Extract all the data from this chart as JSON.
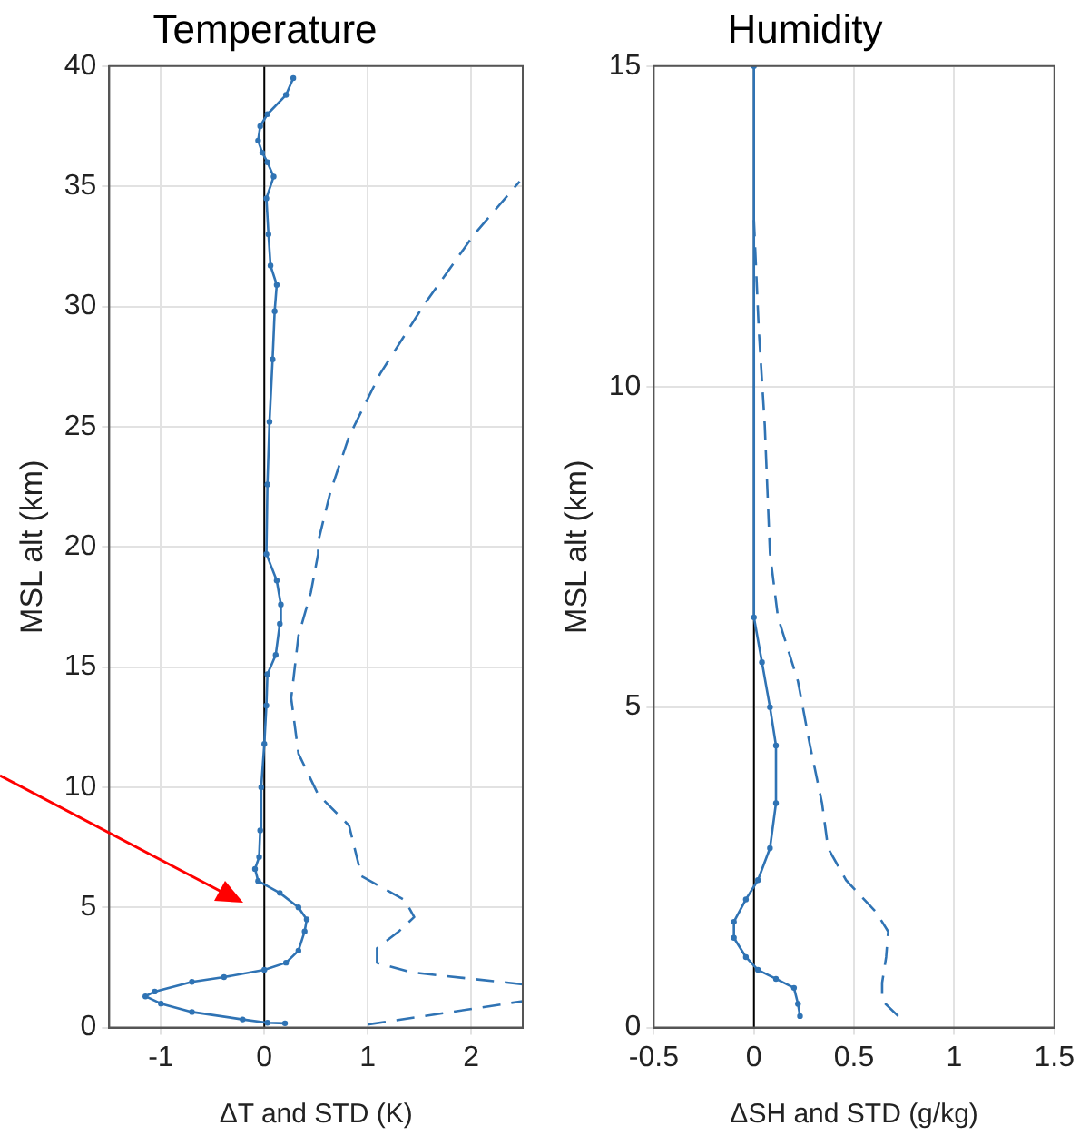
{
  "chart_data": [
    {
      "type": "line",
      "title": "Temperature",
      "xlabel": "ΔT and STD (K)",
      "ylabel": "MSL alt (km)",
      "xlim": [
        -1.5,
        2.5
      ],
      "xticks": [
        -1,
        0,
        1,
        2
      ],
      "ylim": [
        0,
        40
      ],
      "yticks": [
        0,
        5,
        10,
        15,
        20,
        25,
        30,
        35,
        40
      ],
      "grid": true,
      "legend": false,
      "ref_lines": [
        {
          "axis": "x",
          "value": 0,
          "color": "#000000"
        }
      ],
      "series": [
        {
          "color": "#2f73b4",
          "marker": "circle",
          "line_style": "solid",
          "x": [
            0.2,
            0.03,
            -0.21,
            -0.7,
            -1.0,
            -1.15,
            -1.06,
            -0.7,
            -0.39,
            0,
            0.21,
            0.33,
            0.39,
            0.41,
            0.33,
            0.15,
            -0.06,
            -0.09,
            -0.05,
            -0.04,
            -0.03,
            0,
            0.02,
            0.03,
            0.11,
            0.15,
            0.16,
            0.12,
            0.02,
            0.03,
            0.05,
            0.08,
            0.1,
            0.12,
            0.06,
            0.04,
            0.02,
            0.09,
            0.03,
            -0.02,
            -0.06,
            -0.04,
            0.03,
            0.21,
            0.28
          ],
          "values": [
            0.18,
            0.2,
            0.34,
            0.65,
            1.0,
            1.3,
            1.5,
            1.9,
            2.1,
            2.4,
            2.7,
            3.2,
            4.0,
            4.5,
            5.0,
            5.6,
            6.1,
            6.6,
            7.1,
            8.2,
            10,
            11.8,
            13.4,
            14.7,
            15.5,
            16.8,
            17.6,
            18.6,
            19.7,
            22.6,
            25.2,
            27.8,
            29.8,
            30.9,
            31.7,
            33,
            34.5,
            35.4,
            36,
            36.4,
            36.9,
            37.5,
            38,
            38.8,
            39.5
          ]
        },
        {
          "color": "#2f73b4",
          "marker": "none",
          "line_style": "dashed",
          "x": [
            1.0,
            1.73,
            2.5,
            null,
            2.5,
            1.42,
            1.09,
            1.09,
            1.3,
            1.45,
            1.36,
            0.94,
            0.82,
            0.52,
            0.33,
            0.26,
            0.33,
            0.45,
            0.52,
            0.52,
            0.64,
            0.82,
            1.12,
            1.55,
            2.03,
            2.47
          ],
          "values": [
            0.13,
            0.6,
            1.1,
            null,
            1.8,
            2.3,
            2.7,
            3.3,
            4.0,
            4.6,
            5.3,
            6.3,
            8.4,
            9.7,
            11.4,
            13.7,
            16.3,
            18.1,
            19.7,
            20.2,
            22.3,
            24.6,
            27.2,
            30.1,
            33,
            35.2
          ]
        }
      ]
    },
    {
      "type": "line",
      "title": "Humidity",
      "xlabel": "ΔSH and STD (g/kg)",
      "ylabel": "MSL alt (km)",
      "xlim": [
        -0.5,
        1.5
      ],
      "xticks": [
        -0.5,
        0,
        0.5,
        1,
        1.5
      ],
      "ylim": [
        0,
        15
      ],
      "yticks": [
        0,
        5,
        10,
        15
      ],
      "grid": true,
      "legend": false,
      "ref_lines": [
        {
          "axis": "x",
          "value": 0,
          "color": "#000000"
        }
      ],
      "series": [
        {
          "color": "#2f73b4",
          "marker": "circle",
          "line_style": "solid",
          "x": [
            0.23,
            0.22,
            0.2,
            0.11,
            0.02,
            -0.04,
            -0.1,
            -0.1,
            -0.04,
            0.02,
            0.08,
            0.11,
            0.11,
            0.08,
            0.04,
            0,
            0
          ],
          "values": [
            0.18,
            0.37,
            0.62,
            0.76,
            0.9,
            1.1,
            1.4,
            1.65,
            2.0,
            2.3,
            2.8,
            3.5,
            4.4,
            5.0,
            5.7,
            6.4,
            15
          ]
        },
        {
          "color": "#2f73b4",
          "marker": "none",
          "line_style": "dashed",
          "x": [
            0.72,
            0.64,
            0.64,
            0.66,
            0.67,
            0.61,
            0.46,
            0.37,
            0.34,
            0.28,
            0.22,
            0.12,
            0.08,
            0.054,
            0.024,
            0
          ],
          "values": [
            0.18,
            0.42,
            0.7,
            1.1,
            1.5,
            1.8,
            2.3,
            2.8,
            3.5,
            4.4,
            5.4,
            6.4,
            7.4,
            9.4,
            10.9,
            12.6
          ]
        }
      ]
    }
  ]
}
